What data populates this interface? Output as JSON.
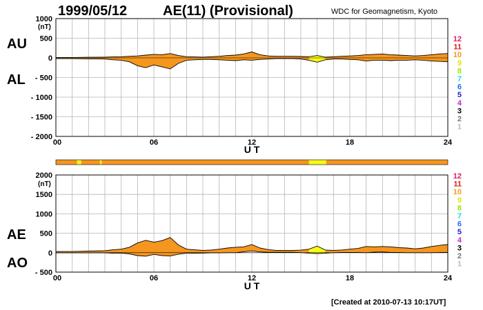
{
  "header": {
    "date": "1999/05/12",
    "title": "AE(11) (Provisional)",
    "source": "WDC for Geomagnetism, Kyoto"
  },
  "footer": {
    "created": "[Created at 2010-07-13 10:17UT]"
  },
  "colors": {
    "fill": "#f5961e",
    "highlight": "#f8f81a",
    "grid": "#b4b4b4"
  },
  "legend": {
    "items": [
      {
        "label": "12",
        "color": "#e0186a"
      },
      {
        "label": "11",
        "color": "#e01818"
      },
      {
        "label": "10",
        "color": "#f59a1e"
      },
      {
        "label": "9",
        "color": "#e6e600"
      },
      {
        "label": "8",
        "color": "#9be600"
      },
      {
        "label": "7",
        "color": "#18d8e8"
      },
      {
        "label": "6",
        "color": "#1873e6"
      },
      {
        "label": "5",
        "color": "#2222cc"
      },
      {
        "label": "4",
        "color": "#cc22cc"
      },
      {
        "label": "3",
        "color": "#000000"
      },
      {
        "label": "2",
        "color": "#777777"
      },
      {
        "label": "1",
        "color": "#bbbbbb"
      }
    ]
  },
  "station_bar": {
    "segments": [
      {
        "from": 0,
        "to": 1.3,
        "level": "10"
      },
      {
        "from": 1.3,
        "to": 1.55,
        "level": "9"
      },
      {
        "from": 1.55,
        "to": 2.7,
        "level": "10"
      },
      {
        "from": 2.7,
        "to": 2.8,
        "level": "9"
      },
      {
        "from": 2.8,
        "to": 15.5,
        "level": "10"
      },
      {
        "from": 15.5,
        "to": 16.55,
        "level": "9"
      },
      {
        "from": 16.55,
        "to": 24,
        "level": "10"
      }
    ]
  },
  "chart_data": [
    {
      "type": "area",
      "name": "AU/AL",
      "upper_label": "AU",
      "lower_label": "AL",
      "unit": "(nT)",
      "xlabel": "U T",
      "xlim": [
        0,
        24
      ],
      "ylim": [
        -2000,
        1000
      ],
      "x_ticks": [
        0,
        6,
        12,
        18,
        24
      ],
      "x_tick_labels": [
        "00",
        "06",
        "12",
        "18",
        "24"
      ],
      "y_ticks": [
        1000,
        500,
        0,
        -500,
        -1000,
        -1500,
        -2000
      ],
      "y_tick_labels": [
        "1000",
        "500",
        "0",
        "- 500",
        "- 1000",
        "- 1500",
        "- 2000"
      ],
      "grid": true,
      "highlight_range": [
        15.5,
        16.55
      ],
      "x": [
        0,
        1,
        2,
        3,
        3.5,
        4,
        4.5,
        5,
        5.5,
        6,
        6.5,
        7,
        7.5,
        8,
        8.5,
        9,
        9.5,
        10,
        10.5,
        11,
        11.5,
        12,
        12.5,
        13,
        13.5,
        14,
        14.5,
        15,
        15.5,
        16,
        16.5,
        17,
        17.5,
        18,
        18.5,
        19,
        19.5,
        20,
        20.5,
        21,
        21.5,
        22,
        22.5,
        23,
        23.5,
        24
      ],
      "upper": [
        10,
        10,
        15,
        20,
        25,
        30,
        40,
        50,
        70,
        90,
        80,
        110,
        60,
        30,
        25,
        20,
        30,
        40,
        60,
        70,
        100,
        150,
        80,
        50,
        40,
        40,
        40,
        35,
        30,
        60,
        20,
        30,
        40,
        50,
        60,
        80,
        90,
        100,
        80,
        70,
        60,
        50,
        60,
        80,
        100,
        110
      ],
      "lower": [
        -20,
        -20,
        -25,
        -30,
        -50,
        -60,
        -100,
        -200,
        -250,
        -180,
        -230,
        -280,
        -140,
        -60,
        -50,
        -40,
        -40,
        -50,
        -60,
        -70,
        -50,
        -60,
        -40,
        -30,
        -20,
        -20,
        -20,
        -30,
        -60,
        -110,
        -50,
        -30,
        -30,
        -40,
        -50,
        -80,
        -60,
        -60,
        -70,
        -60,
        -60,
        -50,
        -60,
        -80,
        -90,
        -100
      ]
    },
    {
      "type": "area",
      "name": "AE/AO",
      "upper_label": "AE",
      "lower_label": "AO",
      "unit": "(nT)",
      "xlabel": "U T",
      "xlim": [
        0,
        24
      ],
      "ylim": [
        -500,
        2000
      ],
      "x_ticks": [
        0,
        6,
        12,
        18,
        24
      ],
      "x_tick_labels": [
        "00",
        "06",
        "12",
        "18",
        "24"
      ],
      "y_ticks": [
        2000,
        1500,
        1000,
        500,
        0,
        -500
      ],
      "y_tick_labels": [
        "2000",
        "1500",
        "1000",
        "500",
        "0",
        "- 500"
      ],
      "grid": true,
      "highlight_range": [
        15.5,
        16.55
      ],
      "x": [
        0,
        1,
        2,
        3,
        3.5,
        4,
        4.5,
        5,
        5.5,
        6,
        6.5,
        7,
        7.5,
        8,
        8.5,
        9,
        9.5,
        10,
        10.5,
        11,
        11.5,
        12,
        12.5,
        13,
        13.5,
        14,
        14.5,
        15,
        15.5,
        16,
        16.5,
        17,
        17.5,
        18,
        18.5,
        19,
        19.5,
        20,
        20.5,
        21,
        21.5,
        22,
        22.5,
        23,
        23.5,
        24
      ],
      "upper": [
        30,
        30,
        40,
        50,
        75,
        90,
        140,
        250,
        320,
        270,
        310,
        390,
        200,
        90,
        75,
        60,
        70,
        90,
        120,
        140,
        150,
        210,
        120,
        80,
        60,
        60,
        60,
        65,
        90,
        170,
        70,
        60,
        70,
        90,
        110,
        160,
        150,
        160,
        150,
        130,
        120,
        100,
        120,
        160,
        190,
        210
      ],
      "lower": [
        -5,
        -5,
        -5,
        -5,
        -12,
        -15,
        -30,
        -75,
        -90,
        -45,
        -75,
        -85,
        -40,
        -15,
        -12,
        -10,
        -5,
        -5,
        0,
        0,
        25,
        45,
        20,
        10,
        10,
        10,
        10,
        2,
        -15,
        -25,
        -15,
        0,
        5,
        5,
        5,
        0,
        15,
        20,
        5,
        5,
        0,
        0,
        0,
        0,
        5,
        5
      ]
    }
  ]
}
